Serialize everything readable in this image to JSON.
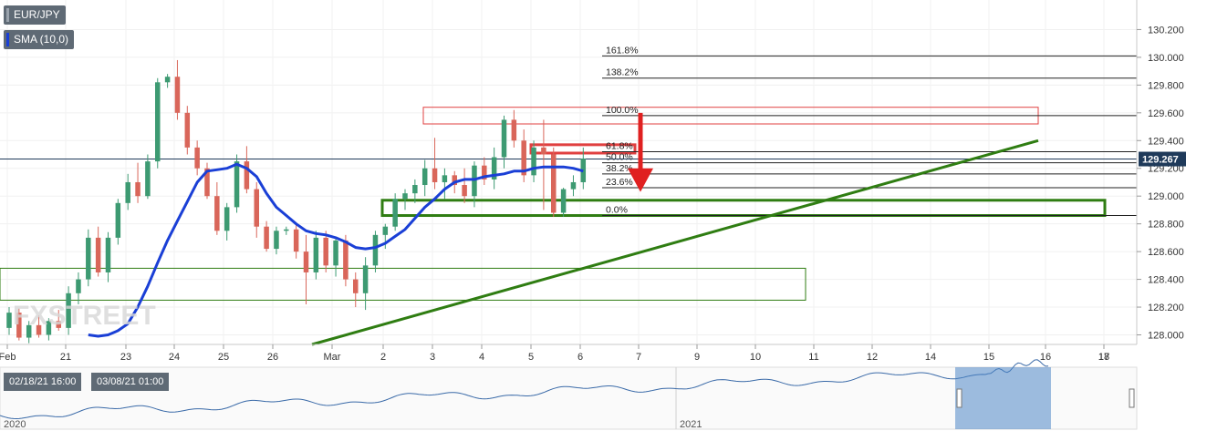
{
  "legend": {
    "symbol": "EUR/JPY",
    "indicator": "SMA (10,0)",
    "symbol_color": "#5f6a75",
    "indicator_color": "#1a3fd6"
  },
  "watermark": "FXSTREET",
  "price_tag": "129.267",
  "navigator": {
    "range_start": "02/18/21 16:00",
    "range_end": "03/08/21 01:00",
    "year_labels": [
      "2020",
      "2021"
    ]
  },
  "colors": {
    "up_candle": "#3d9a72",
    "down_candle": "#d9665a",
    "sma": "#1a3fd6",
    "trendline": "#2f7d12",
    "support_zone": "#2f7d12",
    "resistance_zone": "#e04040",
    "arrow": "#e02020",
    "price_line": "#1f3a5a",
    "navigator_fill": "#4f86c6"
  },
  "chart_data": {
    "type": "candlestick",
    "title": "",
    "y_ticks": [
      "128.000",
      "128.200",
      "128.400",
      "128.600",
      "128.800",
      "129.000",
      "129.200",
      "129.400",
      "129.600",
      "129.800",
      "130.000",
      "130.200"
    ],
    "x_ticks": [
      "Feb",
      "21",
      "23",
      "24",
      "25",
      "26",
      "Mar",
      "2",
      "3",
      "4",
      "5",
      "6",
      "7",
      "9",
      "10",
      "11",
      "12",
      "14",
      "15",
      "16",
      "17",
      "18"
    ],
    "ylim": [
      127.95,
      130.32
    ],
    "current_price": 129.267,
    "fibonacci_levels": [
      {
        "label": "161.8%",
        "value": 130.01
      },
      {
        "label": "138.2%",
        "value": 129.85
      },
      {
        "label": "100.0%",
        "value": 129.58
      },
      {
        "label": "61.8%",
        "value": 129.32
      },
      {
        "label": "50.0%",
        "value": 129.24
      },
      {
        "label": "38.2%",
        "value": 129.16
      },
      {
        "label": "23.6%",
        "value": 129.06
      },
      {
        "label": "0.0%",
        "value": 128.86
      }
    ],
    "candles": [
      [
        128.05,
        128.2,
        128.0,
        128.16
      ],
      [
        128.16,
        128.19,
        127.96,
        127.98
      ],
      [
        127.98,
        128.1,
        127.94,
        128.07
      ],
      [
        128.07,
        128.14,
        127.98,
        128.0
      ],
      [
        128.0,
        128.12,
        127.96,
        128.1
      ],
      [
        128.1,
        128.18,
        128.03,
        128.05
      ],
      [
        128.05,
        128.35,
        128.0,
        128.3
      ],
      [
        128.3,
        128.45,
        128.22,
        128.4
      ],
      [
        128.4,
        128.76,
        128.35,
        128.7
      ],
      [
        128.7,
        128.78,
        128.42,
        128.45
      ],
      [
        128.45,
        128.74,
        128.38,
        128.7
      ],
      [
        128.7,
        128.98,
        128.65,
        128.95
      ],
      [
        128.95,
        129.16,
        128.9,
        129.1
      ],
      [
        129.1,
        129.24,
        128.95,
        129.0
      ],
      [
        129.0,
        129.3,
        128.98,
        129.25
      ],
      [
        129.25,
        129.85,
        129.2,
        129.82
      ],
      [
        129.82,
        129.88,
        129.78,
        129.86
      ],
      [
        129.86,
        129.98,
        129.55,
        129.6
      ],
      [
        129.6,
        129.65,
        129.3,
        129.35
      ],
      [
        129.35,
        129.4,
        129.15,
        129.2
      ],
      [
        129.2,
        129.24,
        128.98,
        129.0
      ],
      [
        129.0,
        129.1,
        128.72,
        128.75
      ],
      [
        128.75,
        128.95,
        128.68,
        128.92
      ],
      [
        128.92,
        129.3,
        128.88,
        129.25
      ],
      [
        129.25,
        129.36,
        129.02,
        129.05
      ],
      [
        129.05,
        129.1,
        128.7,
        128.78
      ],
      [
        128.78,
        128.82,
        128.6,
        128.62
      ],
      [
        128.62,
        128.78,
        128.58,
        128.75
      ],
      [
        128.75,
        128.78,
        128.72,
        128.76
      ],
      [
        128.76,
        128.8,
        128.55,
        128.6
      ],
      [
        128.6,
        128.72,
        128.22,
        128.45
      ],
      [
        128.45,
        128.75,
        128.4,
        128.7
      ],
      [
        128.7,
        128.75,
        128.45,
        128.5
      ],
      [
        128.5,
        128.7,
        128.42,
        128.68
      ],
      [
        128.68,
        128.72,
        128.35,
        128.4
      ],
      [
        128.4,
        128.45,
        128.2,
        128.3
      ],
      [
        128.3,
        128.56,
        128.18,
        128.5
      ],
      [
        128.5,
        128.75,
        128.45,
        128.72
      ],
      [
        128.72,
        128.8,
        128.62,
        128.78
      ],
      [
        128.78,
        129.02,
        128.75,
        128.98
      ],
      [
        128.98,
        129.05,
        128.9,
        129.02
      ],
      [
        129.02,
        129.12,
        128.95,
        129.08
      ],
      [
        129.08,
        129.26,
        129.0,
        129.2
      ],
      [
        129.2,
        129.42,
        129.05,
        129.1
      ],
      [
        129.1,
        129.2,
        128.98,
        129.15
      ],
      [
        129.15,
        129.18,
        129.02,
        129.08
      ],
      [
        129.08,
        129.2,
        128.95,
        129.0
      ],
      [
        129.0,
        129.25,
        128.92,
        129.22
      ],
      [
        129.22,
        129.28,
        129.08,
        129.12
      ],
      [
        129.12,
        129.35,
        129.05,
        129.28
      ],
      [
        129.28,
        129.58,
        129.2,
        129.55
      ],
      [
        129.55,
        129.62,
        129.35,
        129.4
      ],
      [
        129.4,
        129.48,
        129.1,
        129.15
      ],
      [
        129.15,
        129.4,
        129.1,
        129.35
      ],
      [
        129.35,
        129.55,
        128.9,
        129.3
      ],
      [
        129.3,
        129.35,
        128.85,
        128.88
      ],
      [
        128.88,
        129.06,
        128.85,
        129.05
      ],
      [
        129.05,
        129.15,
        129.0,
        129.1
      ],
      [
        129.1,
        129.35,
        129.05,
        129.27
      ]
    ],
    "sma": [
      128.0,
      127.99,
      128.0,
      128.03,
      128.08,
      128.2,
      128.35,
      128.52,
      128.68,
      128.82,
      128.96,
      129.1,
      129.18,
      129.19,
      129.2,
      129.23,
      129.2,
      129.14,
      129.02,
      128.92,
      128.86,
      128.8,
      128.75,
      128.73,
      128.72,
      128.7,
      128.67,
      128.63,
      128.62,
      128.63,
      128.66,
      128.71,
      128.76,
      128.84,
      128.92,
      128.98,
      129.05,
      129.1,
      129.12,
      129.12,
      129.14,
      129.15,
      129.16,
      129.18,
      129.18,
      129.2,
      129.21,
      129.21,
      129.21,
      129.2,
      129.18
    ]
  }
}
